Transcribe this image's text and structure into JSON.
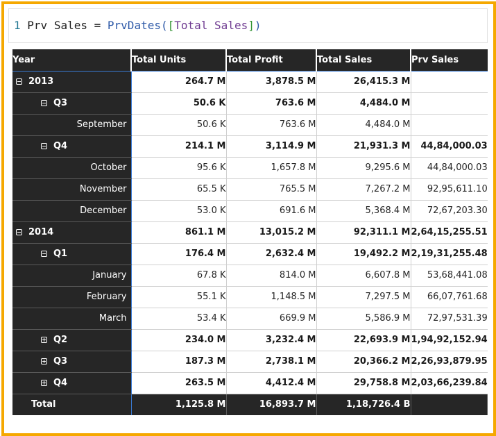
{
  "formula": {
    "line_number": "1",
    "measure_name": "Prv Sales",
    "operator": "=",
    "function": "PrvDates",
    "open_paren": "(",
    "open_bracket": "[",
    "column": "Total Sales",
    "close_bracket": "]",
    "close_paren": ")"
  },
  "matrix": {
    "headers": [
      "Year",
      "Total Units",
      "Total Profit",
      "Total Sales",
      "Prv Sales"
    ],
    "rows": [
      {
        "label": "2013",
        "level": 0,
        "toggle": "collapse",
        "values": [
          "264.7 M",
          "3,878.5 M",
          "26,415.3 M",
          ""
        ]
      },
      {
        "label": "Q3",
        "level": 1,
        "toggle": "collapse",
        "values": [
          "50.6 K",
          "763.6 M",
          "4,484.0 M",
          ""
        ]
      },
      {
        "label": "September",
        "level": 2,
        "toggle": "",
        "values": [
          "50.6 K",
          "763.6 M",
          "4,484.0 M",
          ""
        ]
      },
      {
        "label": "Q4",
        "level": 1,
        "toggle": "collapse",
        "values": [
          "214.1 M",
          "3,114.9 M",
          "21,931.3 M",
          "44,84,000.03"
        ]
      },
      {
        "label": "October",
        "level": 2,
        "toggle": "",
        "values": [
          "95.6 K",
          "1,657.8 M",
          "9,295.6 M",
          "44,84,000.03"
        ]
      },
      {
        "label": "November",
        "level": 2,
        "toggle": "",
        "values": [
          "65.5 K",
          "765.5 M",
          "7,267.2 M",
          "92,95,611.10"
        ]
      },
      {
        "label": "December",
        "level": 2,
        "toggle": "",
        "values": [
          "53.0 K",
          "691.6 M",
          "5,368.4 M",
          "72,67,203.30"
        ]
      },
      {
        "label": "2014",
        "level": 0,
        "toggle": "collapse",
        "values": [
          "861.1 M",
          "13,015.2 M",
          "92,311.1 M",
          "2,64,15,255.51"
        ]
      },
      {
        "label": "Q1",
        "level": 1,
        "toggle": "collapse",
        "values": [
          "176.4 M",
          "2,632.4 M",
          "19,492.2 M",
          "2,19,31,255.48"
        ]
      },
      {
        "label": "January",
        "level": 2,
        "toggle": "",
        "values": [
          "67.8 K",
          "814.0 M",
          "6,607.8 M",
          "53,68,441.08"
        ]
      },
      {
        "label": "February",
        "level": 2,
        "toggle": "",
        "values": [
          "55.1 K",
          "1,148.5 M",
          "7,297.5 M",
          "66,07,761.68"
        ]
      },
      {
        "label": "March",
        "level": 2,
        "toggle": "",
        "values": [
          "53.4 K",
          "669.9 M",
          "5,586.9 M",
          "72,97,531.39"
        ]
      },
      {
        "label": "Q2",
        "level": 1,
        "toggle": "expand",
        "values": [
          "234.0 M",
          "3,232.4 M",
          "22,693.9 M",
          "1,94,92,152.94"
        ]
      },
      {
        "label": "Q3",
        "level": 1,
        "toggle": "expand",
        "values": [
          "187.3 M",
          "2,738.1 M",
          "20,366.2 M",
          "2,26,93,879.95"
        ]
      },
      {
        "label": "Q4",
        "level": 1,
        "toggle": "expand",
        "values": [
          "263.5 M",
          "4,412.4 M",
          "29,758.8 M",
          "2,03,66,239.84"
        ]
      }
    ],
    "total": {
      "label": "Total",
      "values": [
        "1,125.8 M",
        "16,893.7 M",
        "1,18,726.4 B",
        ""
      ]
    }
  }
}
